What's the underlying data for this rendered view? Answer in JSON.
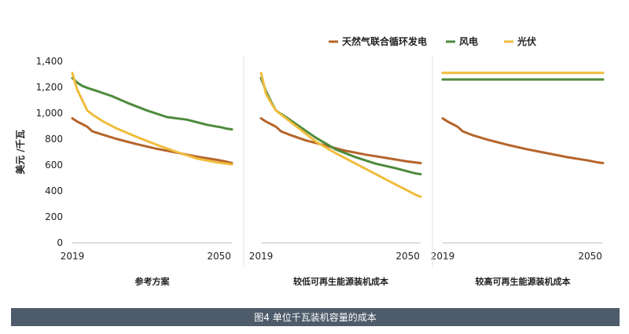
{
  "figure_caption": "图4 单位千瓦装机容量的成本",
  "chart_data": {
    "type": "line",
    "ylabel": "美元 /千瓦",
    "ylim": [
      0,
      1400
    ],
    "yticks": [
      "0",
      "200",
      "400",
      "600",
      "800",
      "1,000",
      "1,200",
      "1,400"
    ],
    "ytick_values": [
      0,
      200,
      400,
      600,
      800,
      1000,
      1200,
      1400
    ],
    "x_tick_labels": [
      "2019",
      "2050"
    ],
    "xlim": [
      2019,
      2050
    ],
    "legend": {
      "placement": "top-right",
      "entries": [
        {
          "name": "天然气联合循环发电",
          "color": "#b5652b"
        },
        {
          "name": "风电",
          "color": "#4e8a3c"
        },
        {
          "name": "光伏",
          "color": "#f0bc3c"
        }
      ]
    },
    "panels": [
      {
        "title": "参考方案",
        "series": [
          {
            "name": "天然气联合循环发电",
            "color": "#b5652b",
            "x": [
              2019,
              2020,
              2021,
              2022,
              2023,
              2025,
              2028,
              2032,
              2036,
              2040,
              2044,
              2048,
              2050,
              2051
            ],
            "y": [
              960,
              935,
              915,
              895,
              860,
              835,
              800,
              760,
              725,
              695,
              665,
              640,
              625,
              615
            ]
          },
          {
            "name": "风电",
            "color": "#4e8a3c",
            "x": [
              2019,
              2020,
              2021,
              2022,
              2024,
              2027,
              2030,
              2034,
              2038,
              2042,
              2046,
              2049,
              2050,
              2051
            ],
            "y": [
              1270,
              1235,
              1210,
              1195,
              1170,
              1130,
              1080,
              1020,
              970,
              950,
              910,
              890,
              880,
              875
            ]
          },
          {
            "name": "光伏",
            "color": "#f0bc3c",
            "x": [
              2019,
              2019.5,
              2020,
              2021,
              2022,
              2023,
              2025,
              2028,
              2032,
              2036,
              2040,
              2044,
              2048,
              2050,
              2051
            ],
            "y": [
              1310,
              1240,
              1180,
              1100,
              1020,
              990,
              940,
              880,
              815,
              755,
              700,
              650,
              620,
              610,
              605
            ]
          }
        ]
      },
      {
        "title": "较低可再生能源装机成本",
        "series": [
          {
            "name": "天然气联合循环发电",
            "color": "#b5652b",
            "x": [
              2019,
              2020,
              2021,
              2022,
              2023,
              2025,
              2028,
              2032,
              2036,
              2040,
              2044,
              2048,
              2050,
              2051
            ],
            "y": [
              960,
              935,
              915,
              895,
              860,
              830,
              790,
              750,
              710,
              680,
              655,
              630,
              620,
              615
            ]
          },
          {
            "name": "风电",
            "color": "#4e8a3c",
            "x": [
              2019,
              2020,
              2021,
              2022,
              2024,
              2027,
              2030,
              2034,
              2038,
              2042,
              2046,
              2049,
              2050,
              2051
            ],
            "y": [
              1270,
              1170,
              1090,
              1020,
              970,
              890,
              810,
              720,
              660,
              610,
              575,
              545,
              535,
              530
            ]
          },
          {
            "name": "光伏",
            "color": "#f0bc3c",
            "x": [
              2019,
              2019.5,
              2020,
              2021,
              2022,
              2024,
              2027,
              2030,
              2034,
              2038,
              2042,
              2046,
              2049,
              2050,
              2051
            ],
            "y": [
              1310,
              1230,
              1150,
              1080,
              1020,
              960,
              870,
              780,
              690,
              610,
              530,
              450,
              390,
              370,
              355
            ]
          }
        ]
      },
      {
        "title": "较高可再生能源装机成本",
        "series": [
          {
            "name": "天然气联合循环发电",
            "color": "#b5652b",
            "x": [
              2019,
              2020,
              2021,
              2022,
              2023,
              2025,
              2028,
              2032,
              2036,
              2040,
              2044,
              2048,
              2050,
              2051
            ],
            "y": [
              960,
              935,
              915,
              895,
              860,
              830,
              795,
              755,
              720,
              690,
              660,
              635,
              620,
              615
            ]
          },
          {
            "name": "风电",
            "color": "#4e8a3c",
            "x": [
              2019,
              2051
            ],
            "y": [
              1260,
              1260
            ]
          },
          {
            "name": "光伏",
            "color": "#f0bc3c",
            "x": [
              2019,
              2051
            ],
            "y": [
              1310,
              1310
            ]
          }
        ]
      }
    ]
  }
}
